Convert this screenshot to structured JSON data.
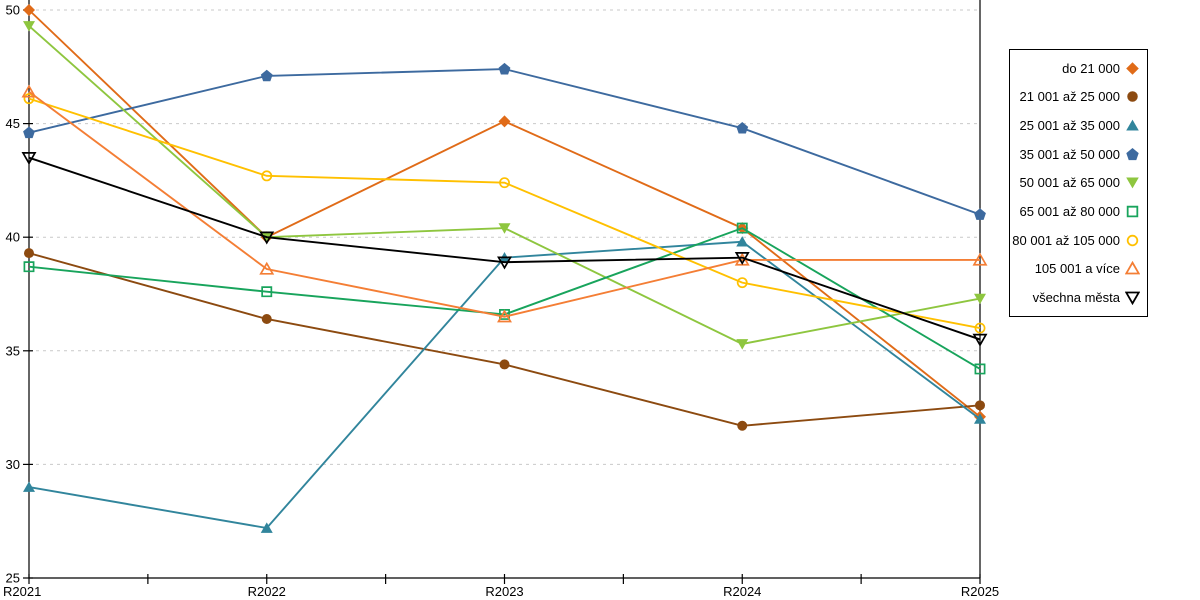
{
  "chart_data": {
    "type": "line",
    "title": "",
    "xlabel": "",
    "ylabel": "",
    "categories": [
      "R2021",
      "R2022",
      "R2023",
      "R2024",
      "R2025"
    ],
    "series": [
      {
        "name": "do 21 000",
        "color": "#E06B18",
        "marker": "diamond",
        "style": "filled",
        "values": [
          50.0,
          40.0,
          45.1,
          40.4,
          32.1
        ]
      },
      {
        "name": "21 001 až 25 000",
        "color": "#8C4A10",
        "marker": "circle",
        "style": "filled",
        "values": [
          39.3,
          36.4,
          34.4,
          31.7,
          32.6
        ]
      },
      {
        "name": "25 001 až 35 000",
        "color": "#31859C",
        "marker": "triangle-up",
        "style": "filled",
        "values": [
          29.0,
          27.2,
          39.1,
          39.8,
          32.0
        ]
      },
      {
        "name": "35 001 až 50 000",
        "color": "#3D6A9F",
        "marker": "pentagon",
        "style": "filled",
        "values": [
          44.6,
          47.1,
          47.4,
          44.8,
          41.0
        ]
      },
      {
        "name": "50 001 až 65 000",
        "color": "#8EC63F",
        "marker": "triangle-down",
        "style": "filled",
        "values": [
          49.3,
          40.0,
          40.4,
          35.3,
          37.3
        ]
      },
      {
        "name": "65 001 až 80 000",
        "color": "#18A45C",
        "marker": "square",
        "style": "hollow",
        "values": [
          38.7,
          37.6,
          36.6,
          40.4,
          34.2
        ]
      },
      {
        "name": "80 001 až 105 000",
        "color": "#FFC000",
        "marker": "circle",
        "style": "hollow",
        "values": [
          46.1,
          42.7,
          42.4,
          38.0,
          36.0
        ]
      },
      {
        "name": "105 001 a více",
        "color": "#F47E35",
        "marker": "triangle-up",
        "style": "hollow",
        "values": [
          46.4,
          38.6,
          36.5,
          39.0,
          39.0
        ]
      },
      {
        "name": "všechna města",
        "color": "#000000",
        "marker": "triangle-down",
        "style": "hollow",
        "values": [
          43.5,
          40.0,
          38.9,
          39.1,
          35.5
        ]
      }
    ],
    "ylim": [
      25,
      50
    ],
    "yticks": [
      50,
      45,
      40,
      35,
      30,
      25
    ],
    "grid": "horizontal-dashed",
    "gridline_color": "#C9C9C9",
    "axis_color": "#000000",
    "legend_position": "right"
  }
}
